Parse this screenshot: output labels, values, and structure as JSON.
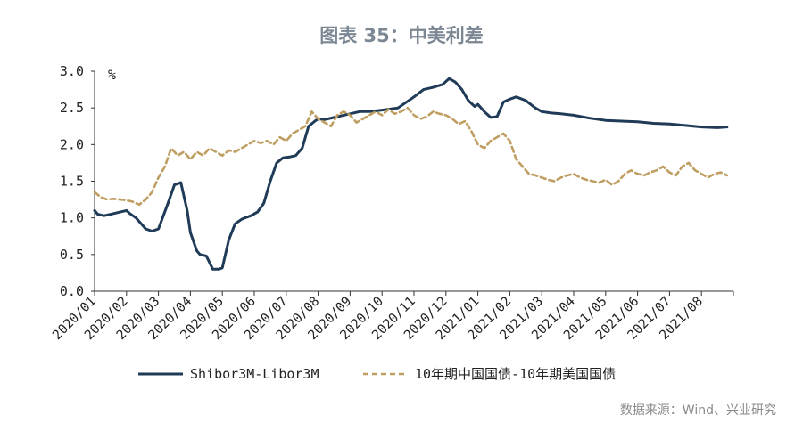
{
  "chart_data": {
    "type": "line",
    "title": "图表 35：中美利差",
    "ylabel": "%",
    "ylim": [
      0,
      3
    ],
    "yticks": [
      "0.0",
      "0.5",
      "1.0",
      "1.5",
      "2.0",
      "2.5",
      "3.0"
    ],
    "categories": [
      "2020/01",
      "2020/02",
      "2020/03",
      "2020/04",
      "2020/05",
      "2020/06",
      "2020/07",
      "2020/08",
      "2020/09",
      "2020/10",
      "2020/11",
      "2020/12",
      "2021/01",
      "2021/02",
      "2021/03",
      "2021/04",
      "2021/05",
      "2021/06",
      "2021/07",
      "2021/08"
    ],
    "legend_position": "bottom",
    "grid": false,
    "series": [
      {
        "name": "Shibor3M-Libor3M",
        "color": "#1f3b57",
        "style": "solid",
        "x": [
          0,
          0.1,
          0.3,
          0.5,
          0.8,
          1.0,
          1.1,
          1.3,
          1.6,
          1.8,
          2.0,
          2.3,
          2.5,
          2.7,
          2.9,
          3.0,
          3.2,
          3.3,
          3.5,
          3.7,
          3.9,
          4.0,
          4.2,
          4.4,
          4.6,
          4.7,
          4.9,
          5.1,
          5.3,
          5.5,
          5.7,
          5.9,
          6.1,
          6.3,
          6.5,
          6.7,
          6.9,
          7.0,
          7.2,
          7.5,
          7.8,
          8.0,
          8.3,
          8.6,
          9.0,
          9.5,
          10.0,
          10.3,
          10.6,
          10.9,
          11.1,
          11.3,
          11.5,
          11.7,
          11.9,
          12.0,
          12.2,
          12.4,
          12.6,
          12.8,
          13.0,
          13.2,
          13.5,
          13.8,
          14.0,
          14.3,
          14.6,
          15.0,
          15.5,
          16.0,
          16.5,
          17.0,
          17.5,
          18.0,
          18.5,
          19.0,
          19.5,
          19.8
        ],
        "values": [
          1.1,
          1.05,
          1.03,
          1.05,
          1.08,
          1.1,
          1.06,
          1.0,
          0.85,
          0.82,
          0.85,
          1.2,
          1.45,
          1.48,
          1.1,
          0.8,
          0.55,
          0.5,
          0.48,
          0.3,
          0.3,
          0.32,
          0.7,
          0.92,
          0.98,
          1.0,
          1.03,
          1.08,
          1.2,
          1.5,
          1.75,
          1.82,
          1.83,
          1.85,
          1.95,
          2.25,
          2.32,
          2.35,
          2.34,
          2.37,
          2.4,
          2.42,
          2.45,
          2.45,
          2.47,
          2.5,
          2.65,
          2.75,
          2.78,
          2.82,
          2.9,
          2.85,
          2.75,
          2.6,
          2.52,
          2.55,
          2.45,
          2.37,
          2.38,
          2.58,
          2.62,
          2.65,
          2.6,
          2.5,
          2.45,
          2.43,
          2.42,
          2.4,
          2.36,
          2.33,
          2.32,
          2.31,
          2.29,
          2.28,
          2.26,
          2.24,
          2.23,
          2.24
        ]
      },
      {
        "name": "10年期中国国债-10年期美国国债",
        "color": "#bf9e62",
        "style": "dashed",
        "x": [
          0,
          0.2,
          0.4,
          0.6,
          0.8,
          1.0,
          1.2,
          1.4,
          1.6,
          1.8,
          2.0,
          2.2,
          2.4,
          2.6,
          2.8,
          3.0,
          3.2,
          3.4,
          3.6,
          3.8,
          4.0,
          4.2,
          4.4,
          4.6,
          4.8,
          5.0,
          5.2,
          5.4,
          5.6,
          5.8,
          6.0,
          6.2,
          6.4,
          6.6,
          6.8,
          7.0,
          7.2,
          7.4,
          7.6,
          7.8,
          8.0,
          8.2,
          8.4,
          8.6,
          8.8,
          9.0,
          9.2,
          9.4,
          9.6,
          9.8,
          10.0,
          10.2,
          10.4,
          10.6,
          10.8,
          11.0,
          11.2,
          11.4,
          11.6,
          11.8,
          12.0,
          12.2,
          12.4,
          12.6,
          12.8,
          13.0,
          13.2,
          13.4,
          13.6,
          13.8,
          14.0,
          14.2,
          14.4,
          14.6,
          14.8,
          15.0,
          15.2,
          15.4,
          15.6,
          15.8,
          16.0,
          16.2,
          16.4,
          16.6,
          16.8,
          17.0,
          17.2,
          17.4,
          17.6,
          17.8,
          18.0,
          18.2,
          18.4,
          18.6,
          18.8,
          19.0,
          19.2,
          19.4,
          19.6,
          19.8
        ],
        "values": [
          1.35,
          1.28,
          1.25,
          1.26,
          1.25,
          1.24,
          1.22,
          1.18,
          1.25,
          1.35,
          1.55,
          1.7,
          1.95,
          1.85,
          1.9,
          1.8,
          1.9,
          1.85,
          1.95,
          1.9,
          1.85,
          1.92,
          1.9,
          1.95,
          2.0,
          2.05,
          2.02,
          2.05,
          2.0,
          2.1,
          2.05,
          2.15,
          2.2,
          2.25,
          2.45,
          2.35,
          2.3,
          2.25,
          2.4,
          2.45,
          2.4,
          2.3,
          2.35,
          2.4,
          2.45,
          2.4,
          2.48,
          2.42,
          2.45,
          2.5,
          2.4,
          2.35,
          2.38,
          2.45,
          2.42,
          2.4,
          2.35,
          2.28,
          2.32,
          2.18,
          2.0,
          1.95,
          2.05,
          2.1,
          2.15,
          2.05,
          1.8,
          1.7,
          1.6,
          1.58,
          1.55,
          1.52,
          1.5,
          1.55,
          1.58,
          1.6,
          1.55,
          1.52,
          1.5,
          1.48,
          1.52,
          1.45,
          1.5,
          1.6,
          1.65,
          1.6,
          1.58,
          1.62,
          1.65,
          1.7,
          1.62,
          1.58,
          1.7,
          1.75,
          1.65,
          1.6,
          1.55,
          1.6,
          1.62,
          1.58
        ]
      }
    ]
  },
  "source_note": "数据来源：Wind、兴业研究"
}
